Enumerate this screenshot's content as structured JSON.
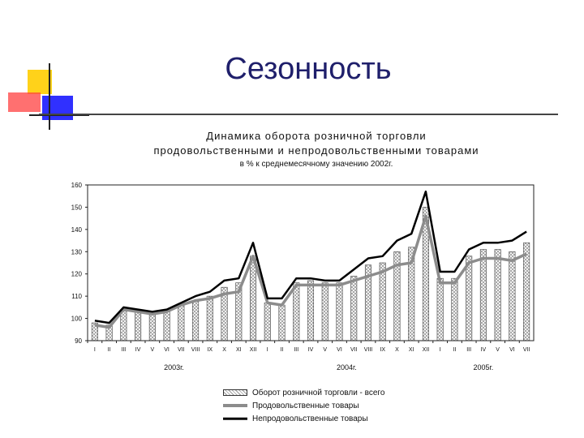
{
  "slide": {
    "title": "Сезонность"
  },
  "colors": {
    "title": "#1f1f6b",
    "food_line": "#8c8c8c",
    "nonfood_line": "#000000",
    "logo_yellow": "#ffd21a",
    "logo_red": "#ff4040",
    "logo_blue": "#3030ff"
  },
  "chart_data": {
    "type": "bar",
    "title_line1": "Динамика оборота розничной торговли",
    "title_line2": "продовольственными и непродовольственными товарами",
    "subtitle": "в % к среднемесячному значению 2002г.",
    "ylim": [
      90,
      160
    ],
    "yticks": [
      90,
      100,
      110,
      120,
      130,
      140,
      150,
      160
    ],
    "categories": [
      "I",
      "II",
      "III",
      "IV",
      "V",
      "VI",
      "VII",
      "VIII",
      "IX",
      "X",
      "XI",
      "XII",
      "I",
      "II",
      "III",
      "IV",
      "V",
      "VI",
      "VII",
      "VIII",
      "IX",
      "X",
      "XI",
      "XII",
      "I",
      "II",
      "III",
      "IV",
      "V",
      "VI",
      "VII"
    ],
    "year_labels": [
      {
        "label": "2003г.",
        "start": 0,
        "end": 11
      },
      {
        "label": "2004г.",
        "start": 12,
        "end": 23
      },
      {
        "label": "2005г.",
        "start": 24,
        "end": 30
      }
    ],
    "series": [
      {
        "name": "Оборот розничной торговли - всего",
        "kind": "bar",
        "values": [
          98,
          97,
          104,
          103,
          102,
          103,
          106,
          108,
          110,
          114,
          116,
          128,
          107,
          106,
          116,
          117,
          116,
          116,
          119,
          124,
          125,
          130,
          132,
          150,
          118,
          118,
          128,
          131,
          131,
          130,
          134
        ]
      },
      {
        "name": "Продовольственные товары",
        "kind": "line",
        "values": [
          97,
          96,
          104,
          103,
          102,
          103,
          106,
          108,
          109,
          111,
          112,
          128,
          107,
          106,
          115,
          115,
          115,
          115,
          117,
          119,
          121,
          124,
          125,
          146,
          116,
          116,
          125,
          127,
          127,
          126,
          129
        ]
      },
      {
        "name": "Непродовольственные товары",
        "kind": "line",
        "values": [
          99,
          98,
          105,
          104,
          103,
          104,
          107,
          110,
          112,
          117,
          118,
          134,
          109,
          109,
          118,
          118,
          117,
          117,
          122,
          127,
          128,
          135,
          138,
          157,
          121,
          121,
          131,
          134,
          134,
          135,
          139
        ]
      }
    ],
    "grid": false,
    "legend_position": "bottom"
  }
}
